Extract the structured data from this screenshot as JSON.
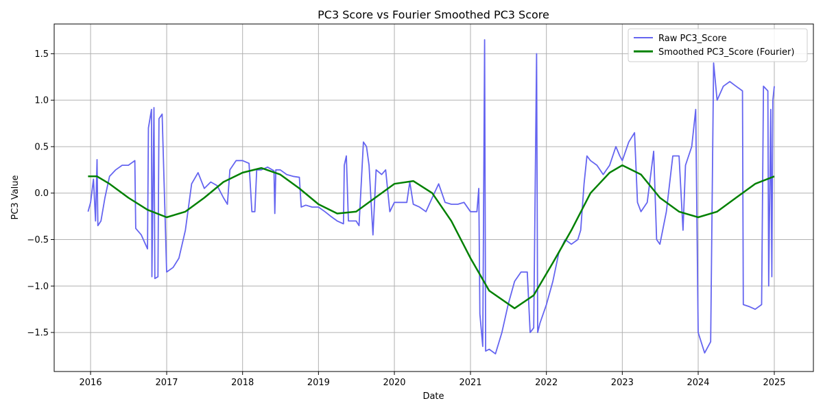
{
  "chart_data": {
    "type": "line",
    "title": "PC3 Score vs Fourier Smoothed PC3 Score",
    "xlabel": "Date",
    "ylabel": "PC3 Value",
    "x_axis": "date",
    "xlim": [
      "2015-07-10",
      "2025-07-08"
    ],
    "ylim": [
      -1.92,
      1.82
    ],
    "x_ticks": [
      "2016",
      "2017",
      "2018",
      "2019",
      "2020",
      "2021",
      "2022",
      "2023",
      "2024",
      "2025"
    ],
    "y_ticks": [
      -1.5,
      -1.0,
      -0.5,
      0.0,
      0.5,
      1.0,
      1.5
    ],
    "y_tick_labels": [
      "−1.5",
      "−1.0",
      "−0.5",
      "0.0",
      "0.5",
      "1.0",
      "1.5"
    ],
    "grid": true,
    "legend_position": "top-right",
    "series": [
      {
        "name": "Raw PC3_Score",
        "color": "#6464f0",
        "points": [
          [
            "2015-12-20",
            -0.2
          ],
          [
            "2016-01-01",
            -0.1
          ],
          [
            "2016-01-15",
            0.15
          ],
          [
            "2016-01-25",
            -0.3
          ],
          [
            "2016-02-01",
            0.36
          ],
          [
            "2016-02-05",
            -0.35
          ],
          [
            "2016-02-20",
            -0.3
          ],
          [
            "2016-03-10",
            -0.05
          ],
          [
            "2016-04-01",
            0.18
          ],
          [
            "2016-05-01",
            0.25
          ],
          [
            "2016-06-01",
            0.3
          ],
          [
            "2016-07-01",
            0.3
          ],
          [
            "2016-08-01",
            0.35
          ],
          [
            "2016-08-05",
            -0.38
          ],
          [
            "2016-09-01",
            -0.45
          ],
          [
            "2016-10-01",
            -0.6
          ],
          [
            "2016-10-05",
            0.7
          ],
          [
            "2016-10-20",
            0.9
          ],
          [
            "2016-10-22",
            -0.9
          ],
          [
            "2016-11-01",
            0.92
          ],
          [
            "2016-11-05",
            -0.92
          ],
          [
            "2016-11-20",
            -0.9
          ],
          [
            "2016-11-25",
            0.8
          ],
          [
            "2016-12-10",
            0.85
          ],
          [
            "2017-01-01",
            -0.85
          ],
          [
            "2017-02-01",
            -0.8
          ],
          [
            "2017-03-01",
            -0.7
          ],
          [
            "2017-04-01",
            -0.4
          ],
          [
            "2017-05-01",
            0.1
          ],
          [
            "2017-06-01",
            0.22
          ],
          [
            "2017-07-01",
            0.05
          ],
          [
            "2017-08-01",
            0.12
          ],
          [
            "2017-09-01",
            0.08
          ],
          [
            "2017-10-01",
            -0.05
          ],
          [
            "2017-10-20",
            -0.12
          ],
          [
            "2017-11-01",
            0.25
          ],
          [
            "2017-12-01",
            0.35
          ],
          [
            "2018-01-01",
            0.35
          ],
          [
            "2018-02-01",
            0.32
          ],
          [
            "2018-02-15",
            -0.2
          ],
          [
            "2018-03-01",
            -0.2
          ],
          [
            "2018-03-10",
            0.25
          ],
          [
            "2018-04-01",
            0.25
          ],
          [
            "2018-05-01",
            0.28
          ],
          [
            "2018-06-01",
            0.24
          ],
          [
            "2018-06-05",
            -0.22
          ],
          [
            "2018-06-10",
            0.25
          ],
          [
            "2018-07-01",
            0.25
          ],
          [
            "2018-08-01",
            0.2
          ],
          [
            "2018-09-01",
            0.18
          ],
          [
            "2018-10-01",
            0.17
          ],
          [
            "2018-10-10",
            -0.15
          ],
          [
            "2018-11-01",
            -0.13
          ],
          [
            "2018-12-01",
            -0.15
          ],
          [
            "2019-01-01",
            -0.15
          ],
          [
            "2019-02-01",
            -0.2
          ],
          [
            "2019-03-01",
            -0.25
          ],
          [
            "2019-04-01",
            -0.3
          ],
          [
            "2019-05-01",
            -0.33
          ],
          [
            "2019-05-05",
            0.3
          ],
          [
            "2019-05-15",
            0.4
          ],
          [
            "2019-05-25",
            -0.3
          ],
          [
            "2019-06-15",
            -0.3
          ],
          [
            "2019-07-01",
            -0.3
          ],
          [
            "2019-07-15",
            -0.35
          ],
          [
            "2019-08-05",
            0.55
          ],
          [
            "2019-08-20",
            0.5
          ],
          [
            "2019-09-01",
            0.3
          ],
          [
            "2019-09-20",
            -0.45
          ],
          [
            "2019-10-05",
            0.25
          ],
          [
            "2019-11-01",
            0.2
          ],
          [
            "2019-11-20",
            0.25
          ],
          [
            "2019-12-10",
            -0.2
          ],
          [
            "2020-01-01",
            -0.1
          ],
          [
            "2020-02-01",
            -0.1
          ],
          [
            "2020-03-01",
            -0.1
          ],
          [
            "2020-03-15",
            0.12
          ],
          [
            "2020-04-01",
            -0.12
          ],
          [
            "2020-05-01",
            -0.15
          ],
          [
            "2020-06-01",
            -0.2
          ],
          [
            "2020-07-01",
            -0.05
          ],
          [
            "2020-08-01",
            0.1
          ],
          [
            "2020-09-01",
            -0.1
          ],
          [
            "2020-10-01",
            -0.12
          ],
          [
            "2020-11-01",
            -0.12
          ],
          [
            "2020-12-01",
            -0.1
          ],
          [
            "2021-01-01",
            -0.2
          ],
          [
            "2021-02-01",
            -0.2
          ],
          [
            "2021-02-10",
            0.05
          ],
          [
            "2021-02-15",
            -1.3
          ],
          [
            "2021-03-01",
            -1.65
          ],
          [
            "2021-03-10",
            1.65
          ],
          [
            "2021-03-15",
            -1.7
          ],
          [
            "2021-04-01",
            -1.68
          ],
          [
            "2021-05-01",
            -1.73
          ],
          [
            "2021-06-01",
            -1.5
          ],
          [
            "2021-07-01",
            -1.2
          ],
          [
            "2021-08-01",
            -0.95
          ],
          [
            "2021-09-01",
            -0.85
          ],
          [
            "2021-10-01",
            -0.85
          ],
          [
            "2021-10-15",
            -1.5
          ],
          [
            "2021-11-01",
            -1.45
          ],
          [
            "2021-11-15",
            1.5
          ],
          [
            "2021-11-20",
            -1.5
          ],
          [
            "2021-12-01",
            -1.4
          ],
          [
            "2022-01-01",
            -1.2
          ],
          [
            "2022-02-01",
            -0.95
          ],
          [
            "2022-03-01",
            -0.65
          ],
          [
            "2022-04-01",
            -0.5
          ],
          [
            "2022-05-01",
            -0.55
          ],
          [
            "2022-06-01",
            -0.5
          ],
          [
            "2022-06-15",
            -0.4
          ],
          [
            "2022-07-01",
            0.1
          ],
          [
            "2022-07-15",
            0.4
          ],
          [
            "2022-08-01",
            0.35
          ],
          [
            "2022-09-01",
            0.3
          ],
          [
            "2022-10-01",
            0.2
          ],
          [
            "2022-11-01",
            0.3
          ],
          [
            "2022-12-01",
            0.5
          ],
          [
            "2022-12-20",
            0.4
          ],
          [
            "2023-01-01",
            0.35
          ],
          [
            "2023-02-01",
            0.55
          ],
          [
            "2023-03-01",
            0.65
          ],
          [
            "2023-03-15",
            -0.1
          ],
          [
            "2023-04-01",
            -0.2
          ],
          [
            "2023-05-01",
            -0.1
          ],
          [
            "2023-06-01",
            0.45
          ],
          [
            "2023-06-15",
            -0.5
          ],
          [
            "2023-07-01",
            -0.55
          ],
          [
            "2023-08-01",
            -0.2
          ],
          [
            "2023-09-01",
            0.4
          ],
          [
            "2023-10-01",
            0.4
          ],
          [
            "2023-10-20",
            -0.4
          ],
          [
            "2023-11-01",
            0.3
          ],
          [
            "2023-12-01",
            0.5
          ],
          [
            "2023-12-20",
            0.9
          ],
          [
            "2024-01-01",
            -1.5
          ],
          [
            "2024-02-01",
            -1.72
          ],
          [
            "2024-03-01",
            -1.6
          ],
          [
            "2024-03-15",
            1.4
          ],
          [
            "2024-04-01",
            1.0
          ],
          [
            "2024-05-01",
            1.15
          ],
          [
            "2024-06-01",
            1.2
          ],
          [
            "2024-07-01",
            1.15
          ],
          [
            "2024-08-01",
            1.1
          ],
          [
            "2024-08-05",
            -1.2
          ],
          [
            "2024-09-01",
            -1.22
          ],
          [
            "2024-10-01",
            -1.25
          ],
          [
            "2024-11-01",
            -1.2
          ],
          [
            "2024-11-10",
            1.15
          ],
          [
            "2024-12-01",
            1.1
          ],
          [
            "2024-12-05",
            -1.0
          ],
          [
            "2024-12-15",
            0.9
          ],
          [
            "2024-12-20",
            -0.9
          ],
          [
            "2024-12-25",
            1.0
          ],
          [
            "2025-01-01",
            1.15
          ]
        ]
      },
      {
        "name": "Smoothed PC3_Score (Fourier)",
        "color": "#008000",
        "points": [
          [
            "2015-12-20",
            0.18
          ],
          [
            "2016-02-01",
            0.18
          ],
          [
            "2016-04-01",
            0.1
          ],
          [
            "2016-07-01",
            -0.05
          ],
          [
            "2016-10-01",
            -0.18
          ],
          [
            "2017-01-01",
            -0.26
          ],
          [
            "2017-04-01",
            -0.2
          ],
          [
            "2017-07-01",
            -0.05
          ],
          [
            "2017-10-01",
            0.12
          ],
          [
            "2018-01-01",
            0.22
          ],
          [
            "2018-04-01",
            0.27
          ],
          [
            "2018-07-01",
            0.2
          ],
          [
            "2018-10-01",
            0.05
          ],
          [
            "2019-01-01",
            -0.12
          ],
          [
            "2019-04-01",
            -0.22
          ],
          [
            "2019-07-01",
            -0.2
          ],
          [
            "2019-10-01",
            -0.05
          ],
          [
            "2020-01-01",
            0.1
          ],
          [
            "2020-04-01",
            0.13
          ],
          [
            "2020-07-01",
            0.0
          ],
          [
            "2020-10-01",
            -0.3
          ],
          [
            "2021-01-01",
            -0.7
          ],
          [
            "2021-04-01",
            -1.05
          ],
          [
            "2021-08-01",
            -1.24
          ],
          [
            "2021-11-01",
            -1.1
          ],
          [
            "2022-02-01",
            -0.75
          ],
          [
            "2022-05-01",
            -0.4
          ],
          [
            "2022-08-01",
            0.0
          ],
          [
            "2022-11-01",
            0.22
          ],
          [
            "2023-01-01",
            0.3
          ],
          [
            "2023-04-01",
            0.2
          ],
          [
            "2023-07-01",
            -0.05
          ],
          [
            "2023-10-01",
            -0.2
          ],
          [
            "2024-01-01",
            -0.26
          ],
          [
            "2024-04-01",
            -0.2
          ],
          [
            "2024-07-01",
            -0.05
          ],
          [
            "2024-10-01",
            0.1
          ],
          [
            "2025-01-01",
            0.18
          ]
        ]
      }
    ]
  }
}
